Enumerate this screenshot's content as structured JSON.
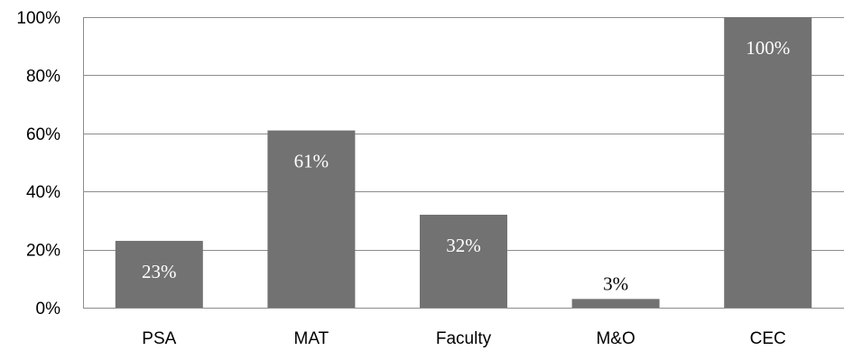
{
  "chart_data": {
    "type": "bar",
    "categories": [
      "PSA",
      "MAT",
      "Faculty",
      "M&O",
      "CEC"
    ],
    "values": [
      23,
      61,
      32,
      3,
      100
    ],
    "data_labels": [
      "23%",
      "61%",
      "32%",
      "3%",
      "100%"
    ],
    "title": "",
    "xlabel": "",
    "ylabel": "",
    "ylim": [
      0,
      100
    ],
    "yticks": [
      0,
      20,
      40,
      60,
      80,
      100
    ],
    "ytick_labels": [
      "0%",
      "20%",
      "40%",
      "60%",
      "80%",
      "100%"
    ],
    "grid": true,
    "legend": "none",
    "colors": {
      "bar": "#727272",
      "grid": "#8c8c8c",
      "axis": "#8c8c8c",
      "label_inside": "#ffffff",
      "label_outside": "#000000",
      "text": "#000000"
    }
  }
}
